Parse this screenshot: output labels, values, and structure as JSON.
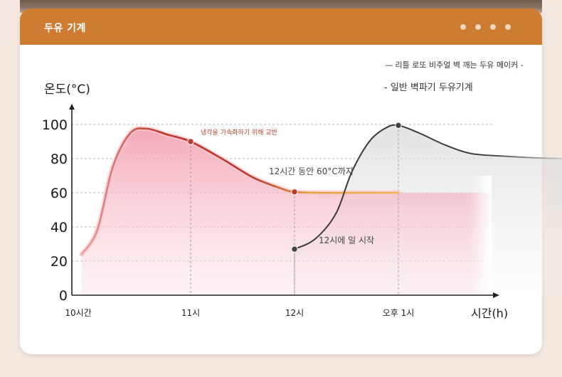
{
  "header": {
    "title": "두유 기계",
    "menu_icon": "more-dots-icon"
  },
  "colors": {
    "header": "#cf7c33",
    "series_primary": "#c0392b",
    "series_primary_hold": "#e6a23c",
    "series_secondary": "#3a3a3a",
    "fill_primary": "#f3b3bf",
    "fill_secondary": "#cfcfcf"
  },
  "chart_data": {
    "type": "line",
    "ylabel": "온도(°C)",
    "xlabel": "시간(h)",
    "ylim": [
      0,
      110
    ],
    "yticks": [
      0,
      20,
      40,
      60,
      80,
      100
    ],
    "xticks": [
      {
        "label": "10시간",
        "x": 0
      },
      {
        "label": "11시",
        "x": 1
      },
      {
        "label": "12시",
        "x": 2
      },
      {
        "label": "오후 1시",
        "x": 3
      }
    ],
    "grid": true,
    "legend_position": "top-right",
    "legend": [
      {
        "text": "— 리틀 로또 비주얼 벽 깨는 두유 메이커 -"
      },
      {
        "text": "- 일반 벽파기 두유기계"
      }
    ],
    "series": [
      {
        "name": "",
        "color": "#c0392b",
        "points": [
          [
            -0.05,
            24
          ],
          [
            0.1,
            38
          ],
          [
            0.25,
            75
          ],
          [
            0.42,
            95
          ],
          [
            0.58,
            97.5
          ],
          [
            0.78,
            94
          ],
          [
            1.0,
            90
          ],
          [
            1.3,
            80
          ],
          [
            1.6,
            69
          ],
          [
            1.85,
            63
          ],
          [
            2.0,
            60.5
          ],
          [
            2.3,
            60
          ],
          [
            2.6,
            60
          ],
          [
            3.0,
            60
          ]
        ]
      },
      {
        "name": "",
        "color": "#3a3a3a",
        "points": [
          [
            2.0,
            27
          ],
          [
            2.2,
            33
          ],
          [
            2.4,
            48
          ],
          [
            2.55,
            72
          ],
          [
            2.72,
            90
          ],
          [
            2.88,
            98
          ],
          [
            3.0,
            99.5
          ],
          [
            3.2,
            95
          ],
          [
            3.45,
            88
          ],
          [
            3.7,
            83
          ],
          [
            4.0,
            81.5
          ],
          [
            4.3,
            80.5
          ],
          [
            4.6,
            80
          ]
        ]
      }
    ],
    "annotations": [
      {
        "text": "냉각을 가속화하기 위해 교반",
        "x": 1.0,
        "y": 90
      },
      {
        "text": "12시간 동안 60°C까지",
        "x": 2.0,
        "y": 60.5
      },
      {
        "text": "12시에 일 시작",
        "x": 2.0,
        "y": 27
      },
      {
        "text": "",
        "x": 3.0,
        "y": 99.5
      }
    ]
  }
}
